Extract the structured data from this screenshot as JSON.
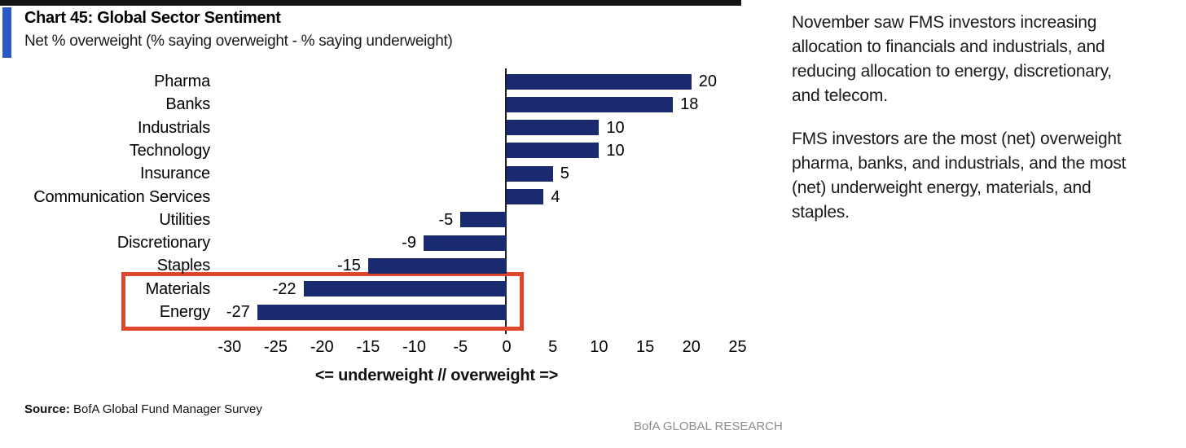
{
  "header": {
    "title": "Chart 45: Global Sector Sentiment",
    "subtitle": "Net % overweight (% saying overweight - % saying underweight)"
  },
  "chart_data": {
    "type": "bar",
    "orientation": "horizontal",
    "categories": [
      "Pharma",
      "Banks",
      "Industrials",
      "Technology",
      "Insurance",
      "Communication Services",
      "Utilities",
      "Discretionary",
      "Staples",
      "Materials",
      "Energy"
    ],
    "values": [
      20,
      18,
      10,
      10,
      5,
      4,
      -5,
      -9,
      -15,
      -22,
      -27
    ],
    "xlabel": "<= underweight // overweight =>",
    "xticks": [
      -30,
      -25,
      -20,
      -15,
      -10,
      -5,
      0,
      5,
      10,
      15,
      20,
      25
    ],
    "xlim": [
      -32.5,
      27.5
    ],
    "grid": false,
    "value_labels": true,
    "highlight": {
      "categories": [
        "Materials",
        "Energy"
      ],
      "box_color": "#e0462c"
    }
  },
  "commentary": {
    "paragraph1": "November saw FMS investors increasing\nallocation to financials and industrials, and\nreducing allocation to energy, discretionary,\nand telecom.",
    "paragraph2": "FMS investors are the most (net) overweight\npharma, banks, and industrials, and the most\n(net) underweight energy, materials, and\nstaples."
  },
  "footer": {
    "source_label": "Source:",
    "source_text": " BofA Global Fund Manager Survey",
    "brand": "BofA GLOBAL RESEARCH"
  },
  "colors": {
    "bar_navy": "#1a2a6e",
    "accent_blue": "#2b59c3",
    "highlight_red": "#e0462c",
    "brand_gray": "#8c8c8c"
  }
}
